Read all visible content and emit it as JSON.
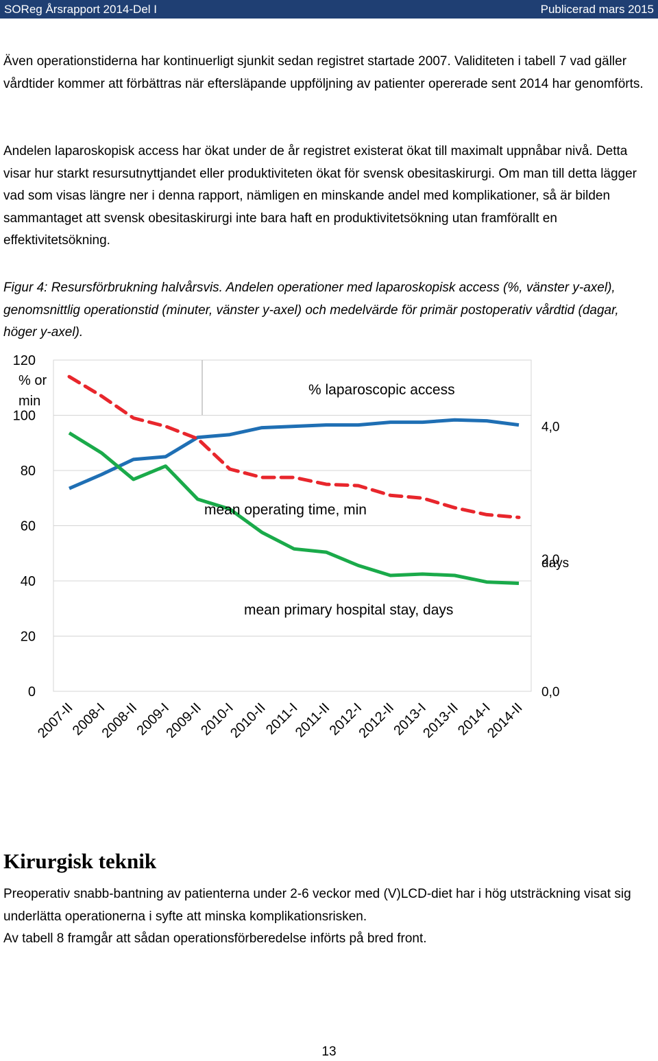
{
  "header": {
    "left": "SOReg Årsrapport 2014-Del I",
    "right": "Publicerad mars 2015"
  },
  "paragraphs": {
    "p1": "Även operationstiderna har kontinuerligt sjunkit sedan registret startade 2007. Validiteten i tabell 7 vad gäller vårdtider kommer att förbättras när eftersläpande uppföljning av patienter opererade sent 2014 har genomförts.",
    "p2": "Andelen laparoskopisk access har ökat under de år registret existerat ökat till maximalt uppnåbar nivå. Detta visar hur starkt resursutnyttjandet eller produktiviteten ökat för svensk obesitaskirurgi. Om man till detta lägger vad som visas längre ner i denna rapport, nämligen en minskande andel med komplikationer, så är bilden sammantaget att svensk obesitaskirurgi inte bara haft en produktivitetsökning utan framförallt en effektivitetsökning.",
    "caption": "Figur 4: Resursförbrukning halvårsvis. Andelen operationer med laparoskopisk access (%, vänster y-axel), genomsnittlig operationstid (minuter, vänster y-axel) och medelvärde för primär postoperativ vårdtid (dagar, höger y-axel)."
  },
  "section": {
    "heading": "Kirurgisk teknik",
    "p1": "Preoperativ snabb-bantning av patienterna under 2-6 veckor med (V)LCD-diet har i hög utsträckning visat sig underlätta operationerna i syfte att minska komplikationsrisken.",
    "p2": "Av tabell 8 framgår att sådan operationsförberedelse införts på bred front."
  },
  "page_number": "13",
  "chart_data": {
    "type": "line",
    "categories": [
      "2007-II",
      "2008-I",
      "2008-II",
      "2009-I",
      "2009-II",
      "2010-I",
      "2010-II",
      "2011-I",
      "2011-II",
      "2012-I",
      "2012-II",
      "2013-I",
      "2013-II",
      "2014-I",
      "2014-II"
    ],
    "left_axis": {
      "title": "% or min",
      "ticks": [
        "0",
        "20",
        "40",
        "60",
        "80",
        "100",
        "120"
      ],
      "range": [
        0,
        120
      ]
    },
    "right_axis": {
      "title": "days",
      "ticks": [
        "0,0",
        "2,0",
        "4,0"
      ],
      "range": [
        0,
        5
      ]
    },
    "series": [
      {
        "name": "% laparoscopic access",
        "axis": "left",
        "color": "#1f6fb4",
        "style": "solid",
        "values": [
          73.5,
          78.5,
          84,
          85,
          92,
          93,
          95.5,
          96,
          96.5,
          96.5,
          97.5,
          97.5,
          98.3,
          98,
          96.5
        ]
      },
      {
        "name": "mean operating time, min",
        "axis": "left",
        "color": "#e8262c",
        "style": "dashed",
        "values": [
          114,
          107,
          99,
          96,
          91.5,
          80.5,
          77.5,
          77.5,
          75,
          74.5,
          71,
          70,
          66.5,
          64,
          63
        ]
      },
      {
        "name": "mean primary hospital stay, days",
        "axis": "right",
        "color": "#1aaa4a",
        "style": "solid",
        "values": [
          3.9,
          3.6,
          3.2,
          3.4,
          2.9,
          2.75,
          2.4,
          2.15,
          2.1,
          1.9,
          1.75,
          1.77,
          1.75,
          1.65,
          1.63
        ]
      }
    ]
  }
}
